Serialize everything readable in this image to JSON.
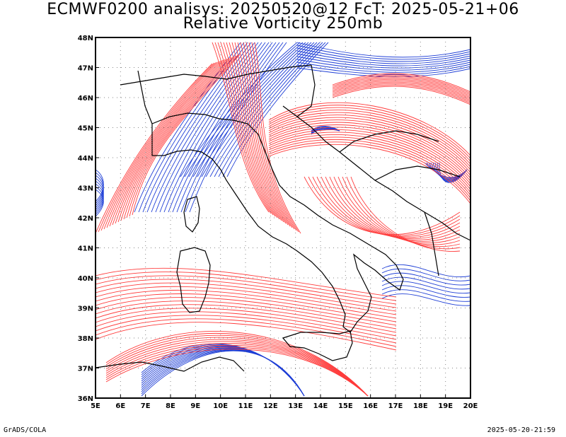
{
  "header": {
    "title": "ECMWF0200 analisys: 20250520@12 FcT: 2025-05-21+06",
    "subtitle": "Relative Vorticity 250mb"
  },
  "map": {
    "lon_range": [
      5,
      20
    ],
    "lat_range": [
      36,
      48
    ],
    "lon_labels": [
      "5E",
      "6E",
      "7E",
      "8E",
      "9E",
      "10E",
      "11E",
      "12E",
      "13E",
      "14E",
      "15E",
      "16E",
      "17E",
      "18E",
      "19E",
      "20E"
    ],
    "lat_labels": [
      "36N",
      "37N",
      "38N",
      "39N",
      "40N",
      "41N",
      "42N",
      "43N",
      "44N",
      "45N",
      "46N",
      "47N",
      "48N"
    ],
    "positive_color": "#ff3b3b",
    "negative_color": "#1f3fd6",
    "border_color": "#000000",
    "grid": "dotted"
  },
  "footer": {
    "credit": "GrADS/COLA",
    "timestamp": "2025-05-20-21:59"
  }
}
